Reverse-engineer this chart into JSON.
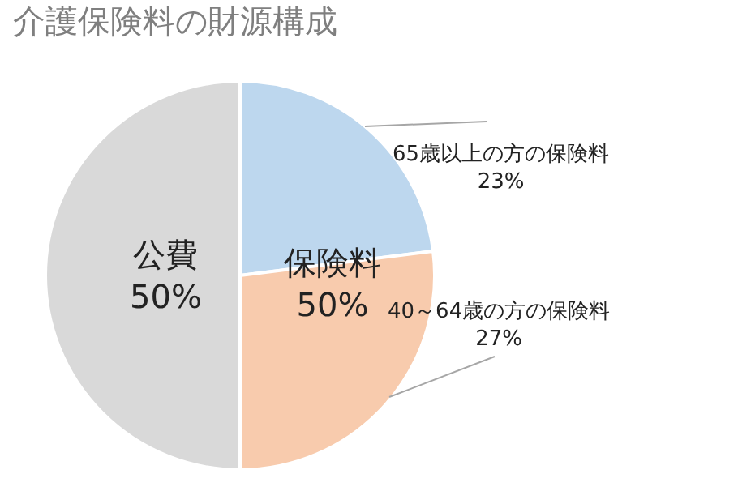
{
  "chart_data": {
    "type": "pie",
    "title": "介護保険料の財源構成",
    "categories": [
      "65歳以上の方の保険料",
      "40～64歳の方の保険料",
      "公費"
    ],
    "values": [
      23,
      27,
      50
    ],
    "value_labels": [
      "23%",
      "27%",
      "50%"
    ],
    "colors": [
      "#bdd7ee",
      "#f8cbad",
      "#d9d9d9"
    ],
    "annotations": [
      "保険料\n50%"
    ],
    "legend": false
  }
}
